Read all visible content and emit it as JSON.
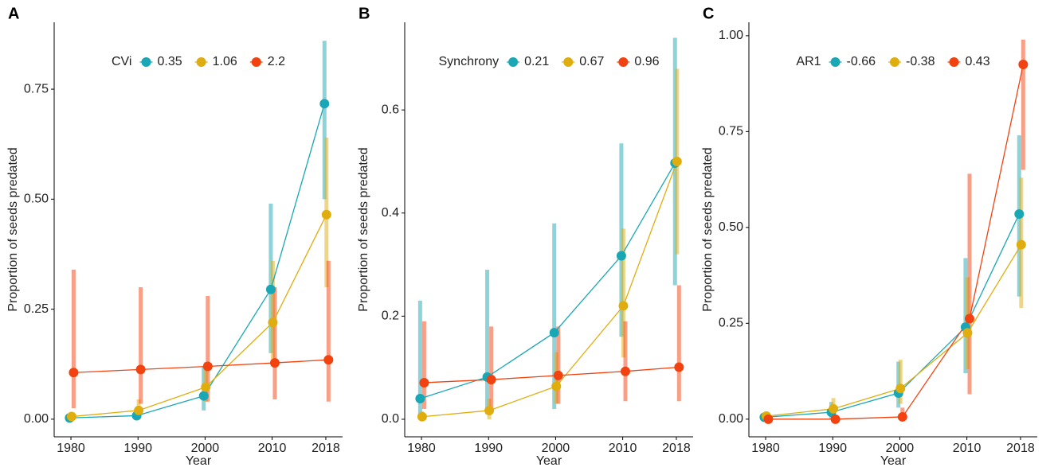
{
  "chart_data": [
    {
      "type": "line",
      "panel_label": "A",
      "legend_title": "CVi",
      "legend": "top",
      "xlabel": "Year",
      "ylabel": "Proportion of seeds predated",
      "xlim": [
        1977.5,
        2020.5
      ],
      "ylim": [
        -0.04,
        0.902
      ],
      "xticks": [
        1980,
        1990,
        2000,
        2010,
        2018
      ],
      "yticks": [
        {
          "value": 0,
          "label": "0.00"
        },
        {
          "value": 0.25,
          "label": "0.25"
        },
        {
          "value": 0.5,
          "label": "0.50"
        },
        {
          "value": 0.75,
          "label": "0.75"
        }
      ],
      "series": [
        {
          "name": "0.35",
          "color": "#1aa7b5",
          "x": [
            1979.8,
            1989.8,
            1999.8,
            2009.8,
            2017.8
          ],
          "values": [
            0.003,
            0.008,
            0.053,
            0.295,
            0.717
          ],
          "lower": [
            0.0,
            0.0,
            0.02,
            0.15,
            0.5
          ],
          "upper": [
            0.01,
            0.02,
            0.12,
            0.49,
            0.86
          ]
        },
        {
          "name": "1.06",
          "color": "#e0ad0f",
          "x": [
            1980.1,
            1990.1,
            2000.1,
            2010.1,
            2018.1
          ],
          "values": [
            0.006,
            0.02,
            0.073,
            0.22,
            0.465
          ],
          "lower": [
            0.0,
            0.0,
            0.04,
            0.12,
            0.3
          ],
          "upper": [
            0.015,
            0.045,
            0.13,
            0.36,
            0.64
          ]
        },
        {
          "name": "2.2",
          "color": "#f2420f",
          "x": [
            1980.4,
            1990.4,
            2000.4,
            2010.4,
            2018.4
          ],
          "values": [
            0.106,
            0.113,
            0.12,
            0.128,
            0.135
          ],
          "lower": [
            0.025,
            0.035,
            0.04,
            0.045,
            0.04
          ],
          "upper": [
            0.34,
            0.3,
            0.28,
            0.3,
            0.36
          ]
        }
      ]
    },
    {
      "type": "line",
      "panel_label": "B",
      "legend_title": "Synchrony",
      "legend": "top",
      "xlabel": "Year",
      "ylabel": "Proportion of seeds predated",
      "xlim": [
        1977.5,
        2020.5
      ],
      "ylim": [
        -0.034,
        0.77
      ],
      "xticks": [
        1980,
        1990,
        2000,
        2010,
        2018
      ],
      "yticks": [
        {
          "value": 0,
          "label": "0.0"
        },
        {
          "value": 0.2,
          "label": "0.2"
        },
        {
          "value": 0.4,
          "label": "0.4"
        },
        {
          "value": 0.6,
          "label": "0.6"
        }
      ],
      "series": [
        {
          "name": "0.21",
          "color": "#1aa7b5",
          "x": [
            1979.8,
            1989.8,
            1999.8,
            2009.8,
            2017.8
          ],
          "values": [
            0.04,
            0.082,
            0.168,
            0.317,
            0.497
          ],
          "lower": [
            0.0,
            0.01,
            0.02,
            0.16,
            0.26
          ],
          "upper": [
            0.23,
            0.29,
            0.38,
            0.535,
            0.74
          ]
        },
        {
          "name": "0.67",
          "color": "#e0ad0f",
          "x": [
            1980.1,
            1990.1,
            2000.1,
            2010.1,
            2018.1
          ],
          "values": [
            0.005,
            0.017,
            0.064,
            0.22,
            0.5
          ],
          "lower": [
            0.0,
            0.0,
            0.03,
            0.12,
            0.32
          ],
          "upper": [
            0.015,
            0.04,
            0.13,
            0.37,
            0.68
          ]
        },
        {
          "name": "0.96",
          "color": "#f2420f",
          "x": [
            1980.4,
            1990.4,
            2000.4,
            2010.4,
            2018.4
          ],
          "values": [
            0.071,
            0.077,
            0.085,
            0.093,
            0.101
          ],
          "lower": [
            0.02,
            0.02,
            0.03,
            0.035,
            0.035
          ],
          "upper": [
            0.19,
            0.18,
            0.18,
            0.19,
            0.26
          ]
        }
      ]
    },
    {
      "type": "line",
      "panel_label": "C",
      "legend_title": "AR1",
      "legend": "top",
      "xlabel": "Year",
      "ylabel": "Proportion of seeds predated",
      "xlim": [
        1977.5,
        2020.5
      ],
      "ylim": [
        -0.046,
        1.035
      ],
      "xticks": [
        1980,
        1990,
        2000,
        2010,
        2018
      ],
      "yticks": [
        {
          "value": 0,
          "label": "0.00"
        },
        {
          "value": 0.25,
          "label": "0.25"
        },
        {
          "value": 0.5,
          "label": "0.50"
        },
        {
          "value": 0.75,
          "label": "0.75"
        },
        {
          "value": 1,
          "label": "1.00"
        }
      ],
      "series": [
        {
          "name": "-0.66",
          "color": "#1aa7b5",
          "x": [
            1979.8,
            1989.8,
            1999.8,
            2009.8,
            2017.8
          ],
          "values": [
            0.005,
            0.018,
            0.068,
            0.24,
            0.535
          ],
          "lower": [
            0.0,
            0.0,
            0.03,
            0.12,
            0.32
          ],
          "upper": [
            0.015,
            0.045,
            0.15,
            0.42,
            0.74
          ]
        },
        {
          "name": "-0.38",
          "color": "#e0ad0f",
          "x": [
            1980.1,
            1990.1,
            2000.1,
            2010.1,
            2018.1
          ],
          "values": [
            0.008,
            0.027,
            0.08,
            0.225,
            0.455
          ],
          "lower": [
            0.0,
            0.0,
            0.04,
            0.13,
            0.29
          ],
          "upper": [
            0.02,
            0.055,
            0.155,
            0.37,
            0.63
          ]
        },
        {
          "name": "0.43",
          "color": "#f2420f",
          "x": [
            1980.4,
            1990.4,
            2000.4,
            2010.4,
            2018.4
          ],
          "values": [
            0.0,
            0.0,
            0.006,
            0.262,
            0.925
          ],
          "lower": [
            0.0,
            0.0,
            0.0,
            0.065,
            0.65
          ],
          "upper": [
            0.005,
            0.005,
            0.03,
            0.64,
            0.99
          ]
        }
      ]
    }
  ]
}
